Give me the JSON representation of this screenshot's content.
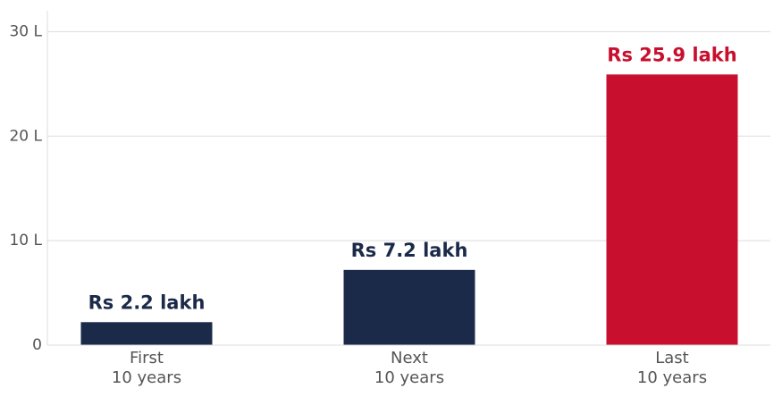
{
  "chart_data": {
    "type": "bar",
    "categories": [
      "First 10 years",
      "Next 10 years",
      "Last 10 years"
    ],
    "values": [
      2.2,
      7.2,
      25.9
    ],
    "value_labels": [
      "Rs 2.2 lakh",
      "Rs 7.2 lakh",
      "Rs 25.9 lakh"
    ],
    "colors": [
      "#1c2a4a",
      "#1c2a4a",
      "#c8102e"
    ],
    "ylim": [
      0,
      32
    ],
    "yticks": [
      0,
      {
        "value": 10,
        "label": "10 L"
      },
      {
        "value": 20,
        "label": "20 L"
      },
      {
        "value": 30,
        "label": "30 L"
      }
    ],
    "grid": true
  }
}
